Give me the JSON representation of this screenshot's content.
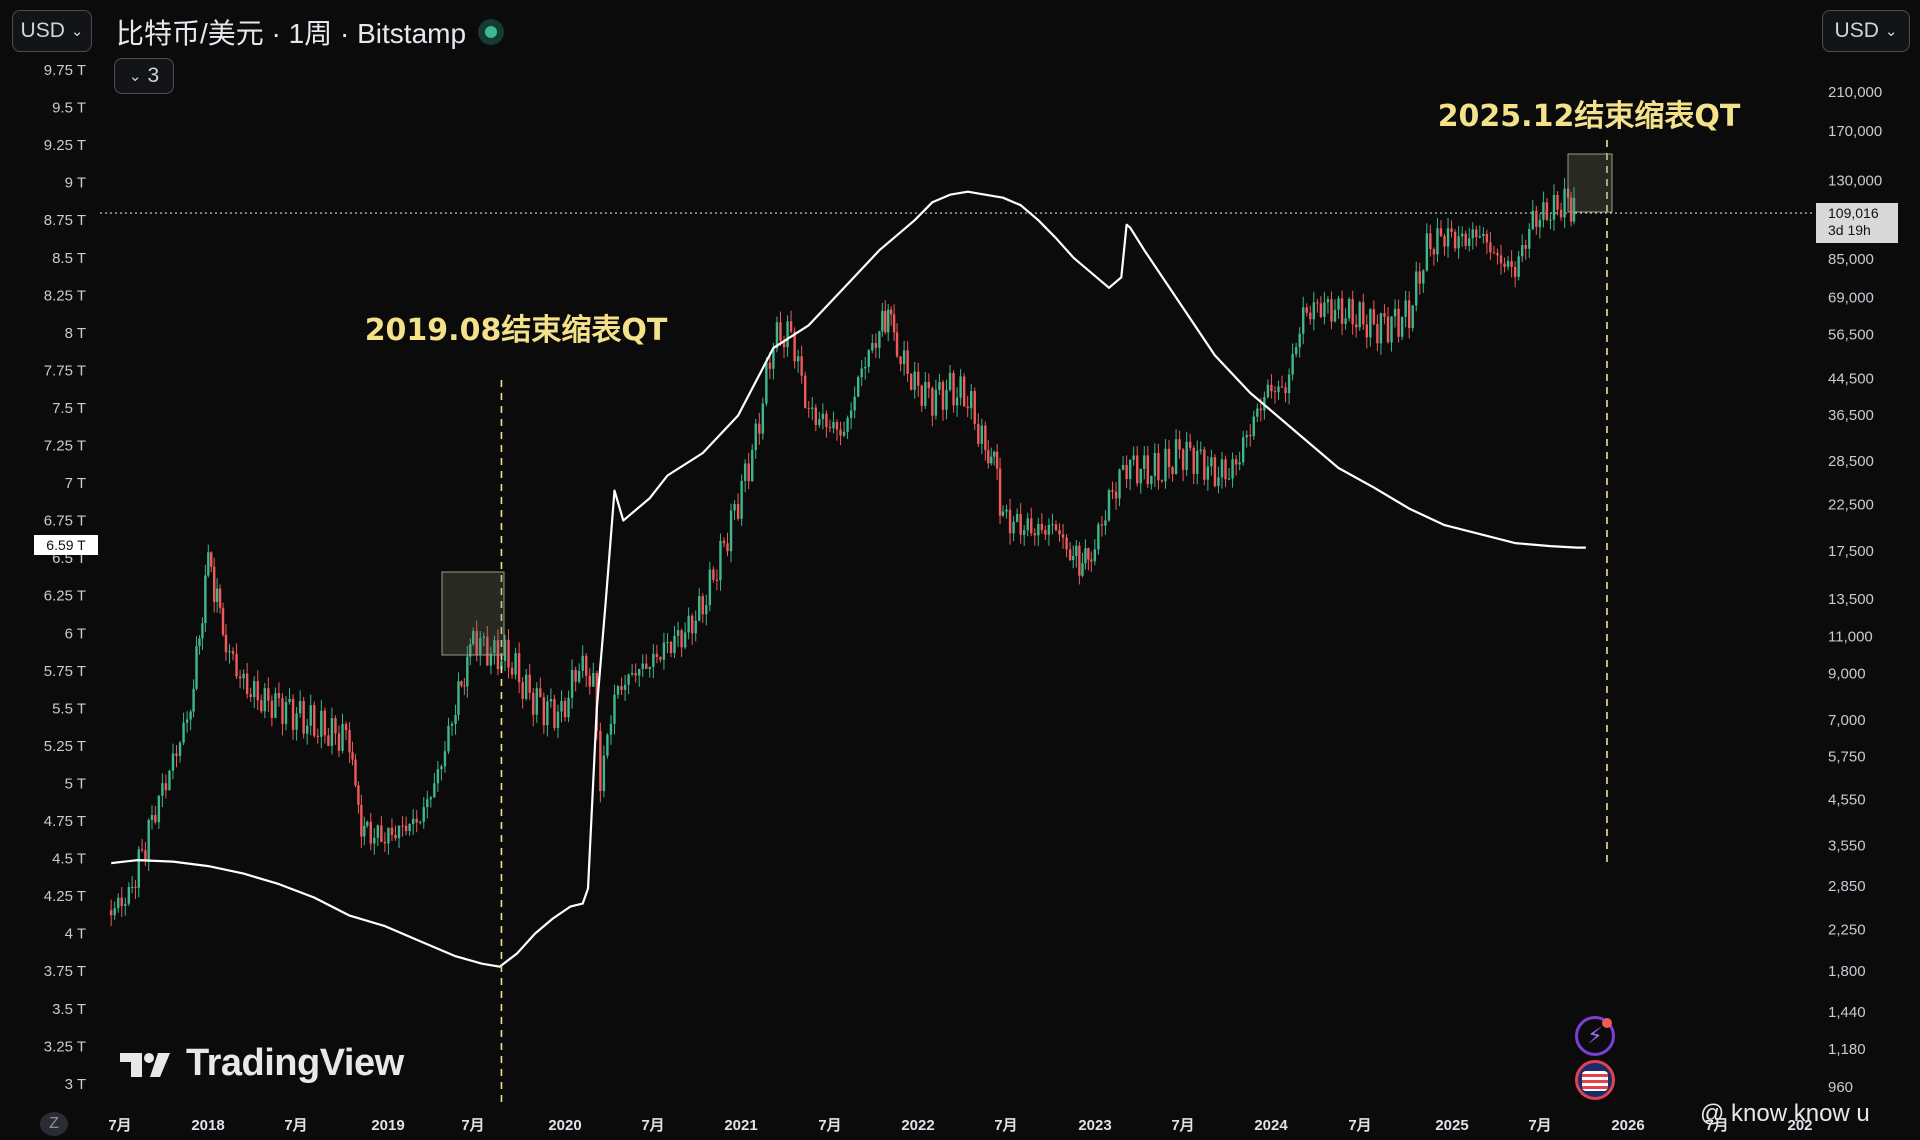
{
  "header": {
    "currency_left": "USD",
    "currency_right": "USD",
    "title": "比特币/美元 · 1周 · Bitstamp",
    "collapse_count": "3",
    "market_status_icon": "green-dot-icon"
  },
  "price_tag": {
    "price": "109,016",
    "countdown": "3d 19h"
  },
  "left_axis_tag": "6.59 T",
  "watermark": "@ know know u",
  "logo_text": "TradingView",
  "z_label": "Z",
  "colors": {
    "background": "#0b0b0c",
    "candle_up": "#3fb68b",
    "candle_down": "#f05a5a",
    "fed_balance_line": "#ffffff",
    "annotation": "#f4e28a",
    "highlight_box": "#5a5a4e"
  },
  "chart_data": {
    "type": "line",
    "title": "比特币/美元 · 1周 · Bitstamp",
    "x_ticks": [
      "7月",
      "2018",
      "7月",
      "2019",
      "7月",
      "2020",
      "7月",
      "2021",
      "7月",
      "2022",
      "7月",
      "2023",
      "7月",
      "2024",
      "7月",
      "2025",
      "7月",
      "2026",
      "7月",
      "202"
    ],
    "left_axis_ticks": [
      "9.75 T",
      "9.5 T",
      "9.25 T",
      "9 T",
      "8.75 T",
      "8.5 T",
      "8.25 T",
      "8 T",
      "7.75 T",
      "7.5 T",
      "7.25 T",
      "7 T",
      "6.75 T",
      "6.5 T",
      "6.25 T",
      "6 T",
      "5.75 T",
      "5.5 T",
      "5.25 T",
      "5 T",
      "4.75 T",
      "4.5 T",
      "4.25 T",
      "4 T",
      "3.75 T",
      "3.5 T",
      "3.25 T",
      "3 T"
    ],
    "right_axis_ticks": [
      "210,000",
      "170,000",
      "130,000",
      "109,016",
      "85,000",
      "69,000",
      "56,500",
      "44,500",
      "36,500",
      "28,500",
      "22,500",
      "17,500",
      "13,500",
      "11,000",
      "9,000",
      "7,000",
      "5,750",
      "4,550",
      "3,550",
      "2,850",
      "2,250",
      "1,800",
      "1,440",
      "1,180",
      "960"
    ],
    "left_ylim": [
      3.0,
      9.75
    ],
    "right_scale": "log",
    "right_ylim": [
      960,
      210000
    ],
    "series": [
      {
        "kind": "line",
        "axis": "left",
        "x": [
          2017.45,
          2017.6,
          2017.8,
          2018.0,
          2018.2,
          2018.4,
          2018.6,
          2018.8,
          2019.0,
          2019.2,
          2019.4,
          2019.55,
          2019.65,
          2019.75,
          2019.85,
          2019.95,
          2020.05,
          2020.12,
          2020.15,
          2020.2,
          2020.25,
          2020.3,
          2020.35,
          2020.4,
          2020.5,
          2020.6,
          2020.8,
          2021.0,
          2021.2,
          2021.4,
          2021.6,
          2021.8,
          2022.0,
          2022.1,
          2022.2,
          2022.3,
          2022.4,
          2022.5,
          2022.6,
          2022.7,
          2022.8,
          2022.9,
          2023.0,
          2023.1,
          2023.17,
          2023.2,
          2023.22,
          2023.3,
          2023.5,
          2023.7,
          2023.9,
          2024.0,
          2024.2,
          2024.4,
          2024.6,
          2024.8,
          2025.0,
          2025.2,
          2025.4,
          2025.6,
          2025.75,
          2025.8
        ],
        "y": [
          4.47,
          4.49,
          4.48,
          4.45,
          4.4,
          4.33,
          4.24,
          4.12,
          4.05,
          3.95,
          3.85,
          3.8,
          3.78,
          3.87,
          4.0,
          4.1,
          4.18,
          4.2,
          4.3,
          5.5,
          6.2,
          6.95,
          6.75,
          6.8,
          6.9,
          7.05,
          7.2,
          7.45,
          7.9,
          8.05,
          8.3,
          8.55,
          8.75,
          8.87,
          8.92,
          8.94,
          8.92,
          8.9,
          8.85,
          8.75,
          8.63,
          8.5,
          8.4,
          8.3,
          8.37,
          8.72,
          8.7,
          8.55,
          8.2,
          7.85,
          7.6,
          7.5,
          7.3,
          7.1,
          6.97,
          6.83,
          6.72,
          6.66,
          6.6,
          6.58,
          6.57,
          6.57
        ]
      },
      {
        "kind": "candlestick",
        "axis": "right",
        "name": "比特币/美元",
        "x": [
          2017.45,
          2017.55,
          2017.7,
          2017.8,
          2017.9,
          2017.95,
          2018.0,
          2018.05,
          2018.1,
          2018.2,
          2018.3,
          2018.4,
          2018.5,
          2018.6,
          2018.7,
          2018.8,
          2018.85,
          2018.9,
          2019.0,
          2019.1,
          2019.2,
          2019.3,
          2019.4,
          2019.45,
          2019.5,
          2019.6,
          2019.7,
          2019.8,
          2019.9,
          2020.0,
          2020.1,
          2020.18,
          2020.22,
          2020.3,
          2020.4,
          2020.5,
          2020.6,
          2020.7,
          2020.8,
          2020.9,
          2021.0,
          2021.1,
          2021.2,
          2021.3,
          2021.4,
          2021.5,
          2021.6,
          2021.7,
          2021.8,
          2021.85,
          2021.9,
          2022.0,
          2022.1,
          2022.2,
          2022.3,
          2022.4,
          2022.45,
          2022.5,
          2022.6,
          2022.7,
          2022.8,
          2022.88,
          2022.95,
          2023.0,
          2023.1,
          2023.2,
          2023.3,
          2023.4,
          2023.5,
          2023.6,
          2023.7,
          2023.8,
          2023.9,
          2024.0,
          2024.1,
          2024.2,
          2024.3,
          2024.4,
          2024.5,
          2024.6,
          2024.7,
          2024.8,
          2024.9,
          2025.0,
          2025.1,
          2025.2,
          2025.3,
          2025.4,
          2025.5,
          2025.6,
          2025.7,
          2025.75
        ],
        "y": [
          2500,
          2700,
          4300,
          5600,
          7500,
          11000,
          17000,
          13500,
          10500,
          8500,
          7800,
          7600,
          7200,
          6800,
          6500,
          6400,
          4200,
          3800,
          3700,
          3900,
          4100,
          5200,
          7500,
          9000,
          11000,
          10000,
          9800,
          8200,
          7500,
          7200,
          9500,
          8600,
          5000,
          8000,
          9000,
          9500,
          10500,
          11200,
          13000,
          17000,
          23000,
          32000,
          55000,
          57000,
          37000,
          35000,
          33000,
          47000,
          57000,
          65000,
          52000,
          43000,
          40000,
          42000,
          40000,
          30000,
          29000,
          21000,
          20000,
          19500,
          20000,
          17000,
          16500,
          17000,
          23000,
          28000,
          27000,
          27000,
          30000,
          29000,
          26500,
          27000,
          34000,
          42000,
          42000,
          63000,
          66000,
          64000,
          62000,
          59000,
          60000,
          63000,
          90000,
          97000,
          94000,
          98000,
          85000,
          80000,
          105000,
          110000,
          117000,
          109016
        ]
      }
    ],
    "annotations": [
      {
        "text": "2019.08结束缩表QT",
        "x": 2019.66,
        "axis": "right"
      },
      {
        "text": "2025.12结束缩表QT",
        "x": 2025.92,
        "axis": "right"
      }
    ],
    "current_price": 109016
  }
}
